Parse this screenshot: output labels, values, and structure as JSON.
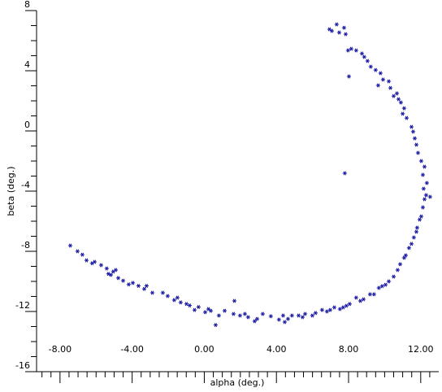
{
  "chart_data": {
    "type": "scatter",
    "xlabel": "alpha (deg.)",
    "ylabel": "beta (deg.)",
    "color": "#1010a0",
    "xlim": [
      -9.3,
      13
    ],
    "ylim": [
      -16,
      8
    ],
    "xticks": [
      {
        "value": -8,
        "label": "-8.00"
      },
      {
        "value": -4,
        "label": "-4.00"
      },
      {
        "value": 0,
        "label": "0.00"
      },
      {
        "value": 4,
        "label": "4.00"
      },
      {
        "value": 8,
        "label": "8.00"
      },
      {
        "value": 12,
        "label": "12.00"
      }
    ],
    "yticks": [
      8,
      4,
      0,
      -4,
      -8,
      -12,
      -16
    ],
    "xminorticks": [
      -9,
      -8.5,
      -7.5,
      -7,
      -6.5,
      -6,
      -5.5,
      -5,
      -4.5,
      -3.5,
      -3,
      -2.5,
      -2,
      -1.5,
      -1,
      -0.5,
      0.5,
      1,
      1.5,
      2,
      2.5,
      3,
      3.5,
      4.5,
      5,
      5.5,
      6,
      6.5,
      7,
      7.5,
      8.5,
      9,
      9.5,
      10,
      10.5,
      11,
      11.5,
      12.5
    ],
    "yminorticks": [
      7,
      6,
      5,
      3,
      2,
      1,
      -1,
      -2,
      -3,
      -5,
      -6,
      -7,
      -9,
      -10,
      -11,
      -13,
      -14,
      -15
    ],
    "x": [
      -7.43,
      -7.03,
      -6.76,
      -6.53,
      -6.22,
      -6.08,
      -5.72,
      -5.41,
      -5.32,
      -5.18,
      -5.05,
      -4.91,
      -4.77,
      -4.5,
      -4.19,
      -3.96,
      -3.65,
      -3.33,
      -3.2,
      -2.88,
      -2.3,
      -2.03,
      -1.67,
      -1.49,
      -1.31,
      -0.99,
      -0.81,
      -0.54,
      -0.32,
      0.05,
      0.23,
      0.36,
      0.63,
      0.81,
      1.13,
      1.67,
      1.62,
      1.98,
      2.25,
      2.43,
      2.79,
      2.93,
      3.24,
      3.69,
      4.14,
      4.37,
      4.46,
      4.64,
      4.86,
      5.23,
      5.45,
      5.59,
      5.99,
      6.17,
      6.53,
      6.8,
      6.98,
      7.21,
      7.52,
      7.7,
      7.88,
      8.06,
      8.42,
      8.65,
      8.83,
      9.19,
      9.41,
      9.68,
      9.86,
      10.05,
      10.23,
      10.5,
      10.72,
      10.86,
      11.08,
      11.17,
      11.35,
      11.49,
      11.62,
      11.76,
      11.8,
      11.94,
      12.03,
      12.12,
      12.21,
      12.3,
      12.52,
      12.16,
      12.34,
      12.12,
      12.21,
      12.03,
      11.85,
      11.76,
      11.67,
      11.58,
      11.49,
      11.22,
      11.0,
      11.08,
      10.9,
      10.77,
      10.68,
      10.5,
      10.32,
      10.23,
      9.91,
      9.77,
      9.5,
      9.23,
      9.05,
      8.87,
      8.74,
      8.42,
      8.15,
      7.97,
      8.02,
      7.84,
      7.75,
      7.48,
      7.34,
      7.07,
      6.94,
      7.79,
      9.64
    ],
    "y": [
      -7.62,
      -8.0,
      -8.22,
      -8.6,
      -8.8,
      -8.7,
      -8.92,
      -9.14,
      -9.5,
      -9.57,
      -9.35,
      -9.24,
      -9.78,
      -9.95,
      -10.2,
      -10.1,
      -10.3,
      -10.5,
      -10.3,
      -10.76,
      -10.76,
      -10.97,
      -11.24,
      -11.08,
      -11.4,
      -11.5,
      -11.6,
      -11.9,
      -11.7,
      -12.05,
      -11.84,
      -11.95,
      -12.9,
      -12.27,
      -11.95,
      -11.3,
      -12.16,
      -12.27,
      -12.16,
      -12.38,
      -12.65,
      -12.49,
      -12.16,
      -12.32,
      -12.54,
      -12.27,
      -12.7,
      -12.49,
      -12.27,
      -12.27,
      -12.38,
      -12.16,
      -12.27,
      -12.1,
      -11.9,
      -12.0,
      -11.9,
      -11.73,
      -11.84,
      -11.73,
      -11.62,
      -11.5,
      -11.08,
      -11.3,
      -11.19,
      -10.86,
      -10.86,
      -10.43,
      -10.32,
      -10.22,
      -10.0,
      -9.68,
      -9.24,
      -8.86,
      -8.43,
      -8.27,
      -7.78,
      -7.51,
      -7.08,
      -6.7,
      -6.43,
      -5.89,
      -5.68,
      -5.08,
      -4.54,
      -4.27,
      -4.38,
      -3.84,
      -3.46,
      -2.92,
      -2.38,
      -2.0,
      -1.46,
      -0.92,
      -0.49,
      -0.05,
      0.27,
      0.86,
      1.14,
      1.51,
      1.89,
      2.11,
      2.49,
      2.32,
      2.86,
      3.3,
      3.41,
      3.84,
      4.05,
      4.27,
      4.65,
      4.92,
      5.14,
      5.35,
      5.46,
      5.35,
      3.62,
      6.43,
      6.86,
      6.54,
      7.08,
      6.65,
      6.76,
      -2.81,
      3.03
    ]
  }
}
